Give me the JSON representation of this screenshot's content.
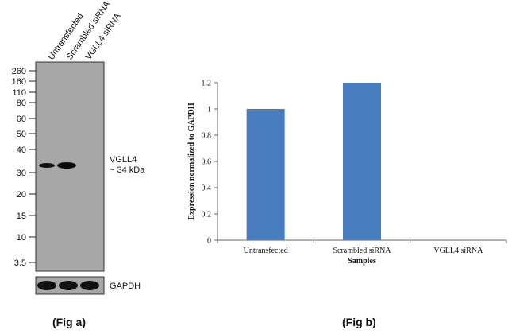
{
  "fig_a": {
    "caption": "(Fig a)",
    "lanes": [
      "Untransfected",
      "Scrambled siRNA",
      "VGLL4 siRNA"
    ],
    "markers": [
      "260",
      "160",
      "110",
      "80",
      "60",
      "50",
      "40",
      "30",
      "20",
      "15",
      "10",
      "3.5"
    ],
    "band_label_name": "VGLL4",
    "band_label_size": "~ 34 kDa",
    "loading_control": "GAPDH",
    "membrane_color": "#a7a7a7"
  },
  "fig_b": {
    "caption": "(Fig b)"
  },
  "chart_data": {
    "type": "bar",
    "categories": [
      "Untransfected",
      "Scrambled siRNA",
      "VGLL4 siRNA"
    ],
    "values": [
      1.0,
      1.2,
      0.0
    ],
    "xlabel": "Samples",
    "ylabel": "Expression  normalized to GAPDH",
    "ylim": [
      0,
      1.2
    ],
    "yticks": [
      "0",
      "0.2",
      "0.4",
      "0.6",
      "0.8",
      "1",
      "1.2"
    ],
    "bar_color": "#4a7dc0",
    "grid": false
  }
}
